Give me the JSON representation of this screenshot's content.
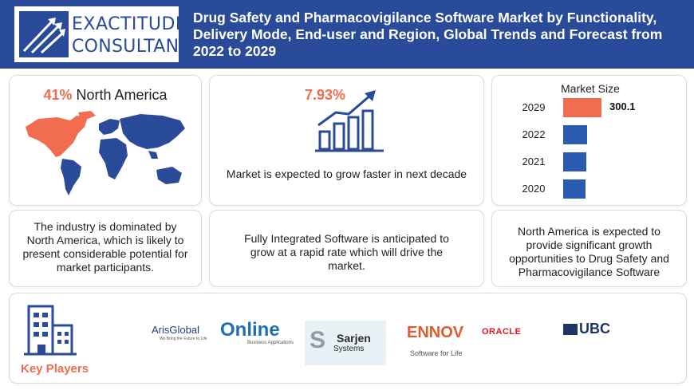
{
  "header": {
    "brand_line1": "EXACTITUDE",
    "brand_line2": "CONSULTANCY",
    "title": "Drug Safety and Pharmacovigilance Software Market by Functionality, Delivery Mode, End-user and Region, Global Trends and Forecast from 2022 to 2029",
    "colors": {
      "bar": "#2a4a9a",
      "accent": "#f26c4f"
    }
  },
  "region_share": {
    "percent": "41%",
    "region": "North America"
  },
  "growth": {
    "cagr": "7.93%",
    "caption": "Market is expected to grow faster in next decade"
  },
  "market_size": {
    "title": "Market Size",
    "chart_data": {
      "type": "bar",
      "categories": [
        "2029",
        "2022",
        "2021",
        "2020"
      ],
      "values": [
        300.1,
        190,
        180,
        175
      ],
      "labels": [
        "300.1",
        "",
        "",
        ""
      ],
      "colors": [
        "#f26c4f",
        "#2a5bb0",
        "#2a5bb0",
        "#2a5bb0"
      ]
    }
  },
  "notes": {
    "dominance": "The industry is dominated by North America, which is likely to present considerable potential for market participants.",
    "segment": "Fully Integrated Software is anticipated to grow at a rapid rate which will drive the market.",
    "opportunity": "North America is expected to provide significant growth opportunities to Drug Safety and Pharmacovigilance Software"
  },
  "key_players": {
    "label": "Key Players",
    "companies": [
      {
        "name": "ArisGlobal",
        "tagline": "We Bring the Future to Life"
      },
      {
        "name": "Online",
        "tagline": "Business Applications"
      },
      {
        "name": "Sarjen",
        "tagline": "Systems"
      },
      {
        "name": "ENNOV",
        "tagline": "Software for Life"
      },
      {
        "name": "ORACLE",
        "tagline": ""
      },
      {
        "name": "UBC",
        "tagline": ""
      }
    ]
  }
}
